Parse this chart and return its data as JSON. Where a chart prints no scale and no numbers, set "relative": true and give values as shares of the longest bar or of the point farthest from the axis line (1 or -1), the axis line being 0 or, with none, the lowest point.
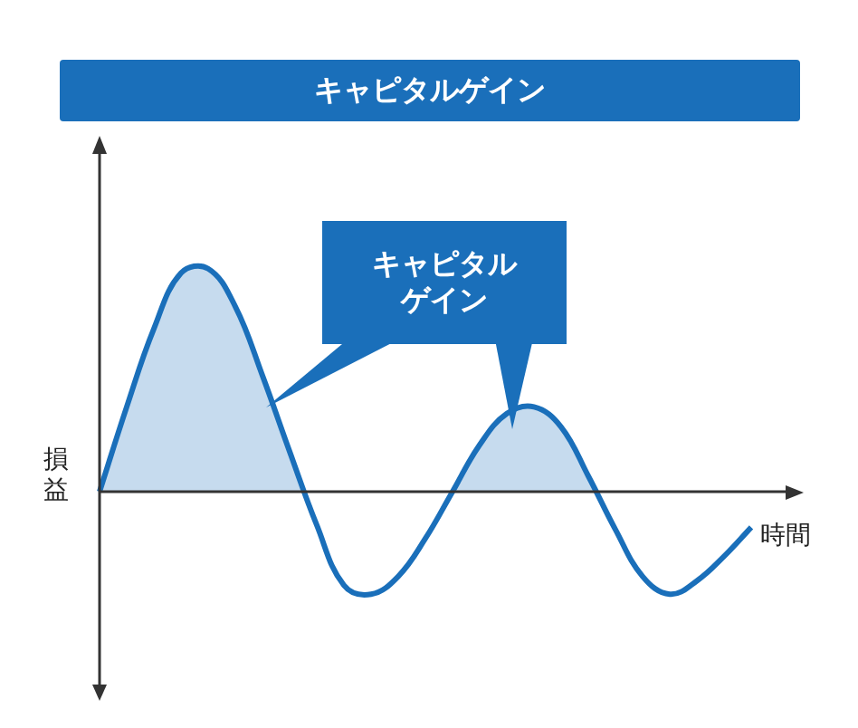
{
  "chart_data": {
    "type": "area",
    "title": "キャピタルゲイン",
    "xlabel": "時間",
    "ylabel": "損益",
    "relative": true,
    "legend": false,
    "marker": "none",
    "annotations": [
      "キャピタルゲイン"
    ],
    "categories": [
      null,
      null,
      null,
      null,
      null,
      null,
      null,
      null,
      null,
      null,
      null,
      null,
      null,
      null,
      null,
      null,
      null,
      null,
      null,
      null,
      null,
      null,
      null,
      null,
      null
    ],
    "series": [
      {
        "color": "#1a6fba",
        "values": [
          0,
          0.38,
          0.73,
          0.98,
          1,
          0.83,
          0.52,
          0.18,
          -0.15,
          -0.42,
          -0.46,
          -0.38,
          -0.21,
          0,
          0.21,
          0.35,
          0.38,
          0.29,
          0.07,
          -0.17,
          -0.38,
          -0.46,
          -0.4,
          -0.29,
          -0.16
        ]
      }
    ]
  }
}
